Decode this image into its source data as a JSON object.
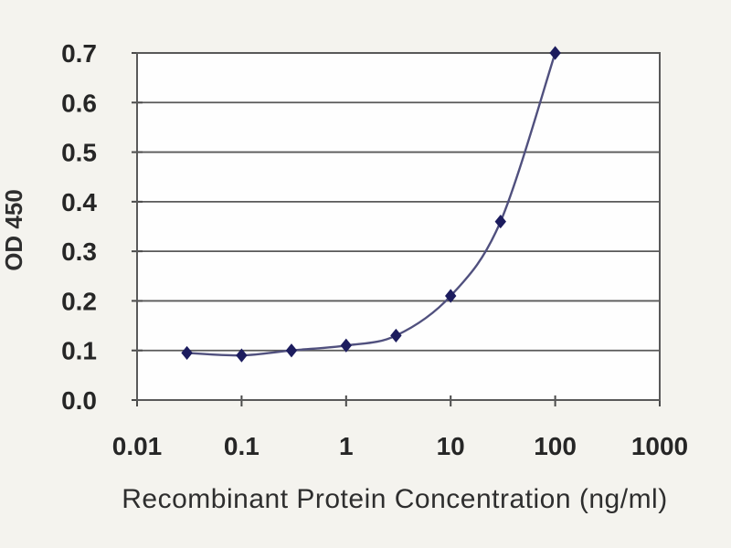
{
  "chart_data": {
    "type": "line",
    "title": "",
    "xlabel": "Recombinant Protein Concentration (ng/ml)",
    "ylabel": "OD 450",
    "x_scale": "log",
    "xlim": [
      0.01,
      1000
    ],
    "ylim": [
      0.0,
      0.7
    ],
    "x_tick_values": [
      0.01,
      0.1,
      1,
      10,
      100,
      1000
    ],
    "x_tick_labels": [
      "0.01",
      "0.1",
      "1",
      "10",
      "100",
      "1000"
    ],
    "y_tick_values": [
      0.0,
      0.1,
      0.2,
      0.3,
      0.4,
      0.5,
      0.6,
      0.7
    ],
    "y_tick_labels": [
      "0.0",
      "0.1",
      "0.2",
      "0.3",
      "0.4",
      "0.5",
      "0.6",
      "0.7"
    ],
    "grid": "horizontal",
    "legend": "none",
    "marker_shape": "diamond",
    "series": [
      {
        "name": "OD 450",
        "x": [
          0.03,
          0.1,
          0.3,
          1,
          3,
          10,
          30,
          100
        ],
        "y": [
          0.095,
          0.09,
          0.1,
          0.11,
          0.13,
          0.21,
          0.36,
          0.7
        ]
      }
    ],
    "colors": {
      "marker": "#1c1c5e",
      "line": "#50507e",
      "grid": "#595959",
      "axis": "#4a4a4a",
      "text": "#262626",
      "figure_background": "#f4f3ee",
      "plot_background": "#fefefe"
    }
  }
}
